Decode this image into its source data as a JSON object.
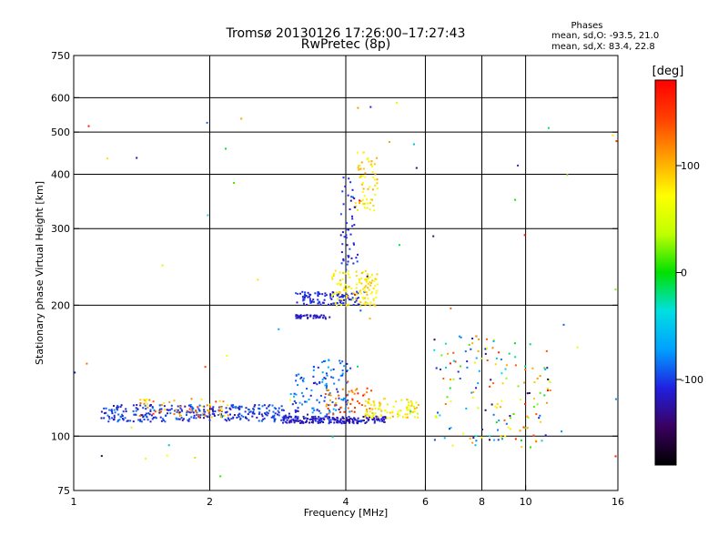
{
  "title": "Tromsø 20130126 17:26:00–17:27:43",
  "subtitle": "RwPretec (8p)",
  "stats": {
    "heading": "Phases",
    "line_o": "mean, sd,O: -93.5, 21.0",
    "line_x": "mean, sd,X:  83.4, 22.8"
  },
  "colorbar": {
    "unit": "[deg]",
    "ticks": [
      {
        "value": 100,
        "label": "100"
      },
      {
        "value": 0,
        "label": "0"
      },
      {
        "value": -100,
        "label": "-100"
      }
    ],
    "range": [
      -180,
      180
    ],
    "colors": [
      "#000000",
      "#3a0060",
      "#2020e0",
      "#00a0ff",
      "#00e0e0",
      "#00e000",
      "#c0ff00",
      "#ffff00",
      "#ffa000",
      "#ff4000",
      "#ff0000"
    ]
  },
  "chart_data": {
    "type": "scatter",
    "title": "Tromsø 20130126 17:26:00–17:27:43",
    "subtitle": "RwPretec (8p)",
    "xlabel": "Frequency [MHz]",
    "ylabel": "Stationary phase Virtual Height [km]",
    "x_scale": "log",
    "y_scale": "log",
    "xlim": [
      1,
      16
    ],
    "ylim": [
      75,
      750
    ],
    "x_ticks": [
      1,
      2,
      4,
      6,
      8,
      10,
      16
    ],
    "y_ticks": [
      75,
      100,
      200,
      300,
      400,
      500,
      600,
      750
    ],
    "x_grid": [
      2,
      4,
      6,
      8,
      10
    ],
    "y_grid": [
      100,
      200,
      300,
      400,
      500,
      600
    ],
    "color_variable": "phase [deg]",
    "point_groups": [
      {
        "x_range": [
          1.15,
          3.0
        ],
        "h_range": [
          108,
          118
        ],
        "phase_range": [
          -125,
          -80
        ],
        "count": 320
      },
      {
        "x_range": [
          1.4,
          2.2
        ],
        "h_range": [
          110,
          122
        ],
        "phase_range": [
          60,
          150
        ],
        "count": 60
      },
      {
        "x_range": [
          2.9,
          4.9
        ],
        "h_range": [
          107,
          111
        ],
        "phase_range": [
          -130,
          -100
        ],
        "count": 200
      },
      {
        "x_range": [
          3.0,
          4.1
        ],
        "h_range": [
          112,
          150
        ],
        "phase_range": [
          -120,
          -60
        ],
        "count": 120
      },
      {
        "x_range": [
          3.6,
          4.6
        ],
        "h_range": [
          112,
          130
        ],
        "phase_range": [
          100,
          170
        ],
        "count": 50
      },
      {
        "x_range": [
          4.4,
          5.8
        ],
        "h_range": [
          110,
          122
        ],
        "phase_range": [
          40,
          110
        ],
        "count": 90
      },
      {
        "x_range": [
          3.1,
          4.4
        ],
        "h_range": [
          200,
          215
        ],
        "phase_range": [
          -120,
          -95
        ],
        "count": 100
      },
      {
        "x_range": [
          3.1,
          3.7
        ],
        "h_range": [
          186,
          190
        ],
        "phase_range": [
          -125,
          -110
        ],
        "count": 40
      },
      {
        "x_range": [
          3.7,
          4.7
        ],
        "h_range": [
          198,
          240
        ],
        "phase_range": [
          60,
          100
        ],
        "count": 120
      },
      {
        "x_range": [
          4.2,
          4.7
        ],
        "h_range": [
          330,
          450
        ],
        "phase_range": [
          60,
          110
        ],
        "count": 60
      },
      {
        "x_range": [
          3.9,
          4.25
        ],
        "h_range": [
          240,
          400
        ],
        "phase_range": [
          -130,
          -90
        ],
        "count": 50
      },
      {
        "x_range": [
          6.2,
          11.5
        ],
        "h_range": [
          95,
          170
        ],
        "phase_range": [
          -150,
          170
        ],
        "count": 160
      },
      {
        "x_range": [
          1.0,
          16
        ],
        "h_range": [
          80,
          620
        ],
        "phase_range": [
          -160,
          170
        ],
        "count": 60
      }
    ]
  }
}
